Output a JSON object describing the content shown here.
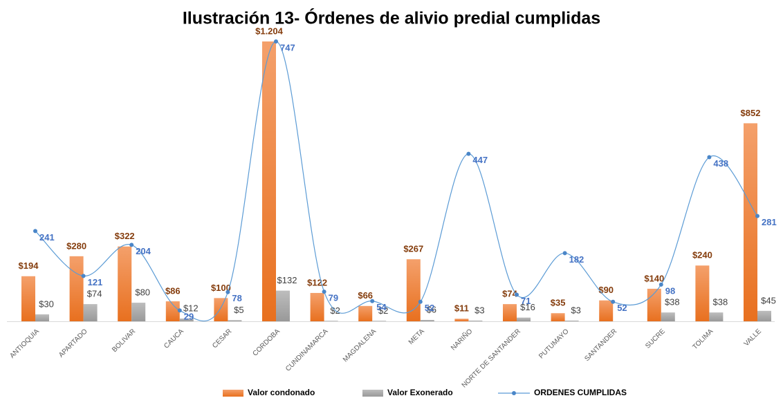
{
  "chart_data": {
    "type": "bar-line",
    "title": "Ilustración 13- Órdenes de alivio predial cumplidas",
    "categories": [
      "ANTIOQUIA",
      "APARTADO",
      "BOLIVAR",
      "CAUCA",
      "CESAR",
      "CORDOBA",
      "CUNDINAMARCA",
      "MAGDALENA",
      "META",
      "NARIÑO",
      "NORTE DE SANTANDER",
      "PUTUMAYO",
      "SANTANDER",
      "SUCRE",
      "TOLIMA",
      "VALLE"
    ],
    "series": [
      {
        "name": "Valor condonado",
        "type": "bar",
        "color": "#ed7d31",
        "values": [
          194,
          280,
          322,
          86,
          100,
          1204,
          122,
          66,
          267,
          11,
          74,
          35,
          90,
          140,
          240,
          852
        ],
        "value_labels": [
          "$194",
          "$280",
          "$322",
          "$86",
          "$100",
          "$1.204",
          "$122",
          "$66",
          "$267",
          "$11",
          "$74",
          "$35",
          "$90",
          "$140",
          "$240",
          "$852"
        ]
      },
      {
        "name": "Valor Exonerado",
        "type": "bar",
        "color": "#a5a5a5",
        "values": [
          30,
          74,
          80,
          12,
          5,
          132,
          2,
          2,
          6,
          3,
          16,
          3,
          null,
          38,
          38,
          45
        ],
        "value_labels": [
          "$30",
          "$74",
          "$80",
          "$12",
          "$5",
          "$132",
          "$2",
          "$2",
          "$6",
          "$3",
          "$16",
          "$3",
          null,
          "$38",
          "$38",
          "$45"
        ]
      },
      {
        "name": "ORDENES CUMPLIDAS",
        "type": "line",
        "color": "#5b9bd5",
        "values": [
          241,
          121,
          204,
          29,
          78,
          747,
          79,
          54,
          52,
          447,
          71,
          182,
          52,
          98,
          438,
          281
        ]
      }
    ],
    "legend": "bottom"
  }
}
